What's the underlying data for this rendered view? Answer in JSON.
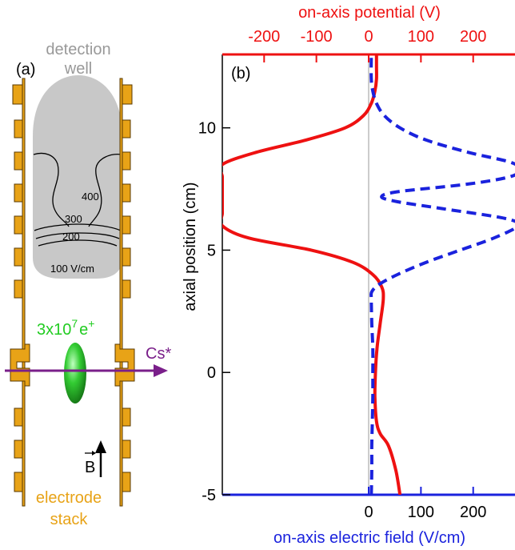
{
  "colors": {
    "electrode": "#e8a317",
    "electrode_edge": "#5a3a00",
    "well": "#c8c8c8",
    "well_text": "#999999",
    "cloud": "#22bb22",
    "cloud_label": "#22cc22",
    "cs_beam": "#7a1f8a",
    "potential": "#ee1111",
    "field": "#1a22dd"
  },
  "panel_a": {
    "label": "(a)",
    "well_label_line1": "detection",
    "well_label_line2": "well",
    "contours": [
      "400",
      "300",
      "200",
      "100 V/cm"
    ],
    "positron_count_base": "3x10",
    "positron_count_exp": "7",
    "positron_symbol_base": "e",
    "positron_symbol_sup": "+",
    "beam_label": "Cs*",
    "field_vector_label": "B",
    "electrode_label_line1": "electrode",
    "electrode_label_line2": "stack"
  },
  "chart_data": {
    "type": "line",
    "panel_label": "(b)",
    "ylabel": "axial position (cm)",
    "ylim": [
      -5,
      13
    ],
    "yticks": [
      "-5",
      "0",
      "5",
      "10"
    ],
    "top_axis": {
      "label": "on-axis potential (V)",
      "ticks": [
        "-200",
        "-100",
        "0",
        "100",
        "200"
      ],
      "tick_values": [
        -200,
        -100,
        0,
        100,
        200
      ],
      "xlim": [
        -280,
        280
      ]
    },
    "bottom_axis": {
      "label": "on-axis electric field (V/cm)",
      "ticks": [
        "0",
        "100",
        "200"
      ],
      "tick_values": [
        0,
        100,
        200
      ],
      "xlim": [
        -280,
        280
      ]
    },
    "series": [
      {
        "axis": "top",
        "style": "solid",
        "y": [
          -5,
          -4,
          -3,
          -2.5,
          -2,
          -1,
          0,
          1,
          2,
          3,
          3.5,
          4,
          4.5,
          5,
          5.5,
          6,
          6.5,
          7,
          7.5,
          8,
          8.5,
          9,
          9.5,
          10,
          10.5,
          11,
          11.5,
          12,
          12.5,
          13
        ],
        "x": [
          60,
          52,
          38,
          22,
          15,
          12,
          13,
          16,
          22,
          28,
          25,
          8,
          -30,
          -110,
          -230,
          -280,
          -280,
          -280,
          -280,
          -280,
          -280,
          -215,
          -120,
          -45,
          -10,
          5,
          12,
          15,
          15,
          15
        ]
      },
      {
        "axis": "bottom",
        "style": "dashed",
        "y": [
          -5,
          -4,
          -3,
          -2,
          -1,
          0,
          1,
          2,
          3,
          3.3,
          3.6,
          4,
          4.5,
          5,
          5.5,
          6,
          6.3,
          6.7,
          7,
          7.2,
          7.4,
          7.7,
          8,
          8.3,
          8.6,
          9,
          9.5,
          10,
          10.5,
          11,
          11.5,
          12,
          13
        ],
        "x": [
          5,
          6,
          6,
          7,
          8,
          8,
          8,
          6,
          5,
          6,
          20,
          55,
          110,
          175,
          240,
          285,
          260,
          140,
          50,
          25,
          60,
          190,
          270,
          290,
          270,
          190,
          110,
          60,
          30,
          15,
          8,
          5,
          5
        ]
      }
    ]
  }
}
